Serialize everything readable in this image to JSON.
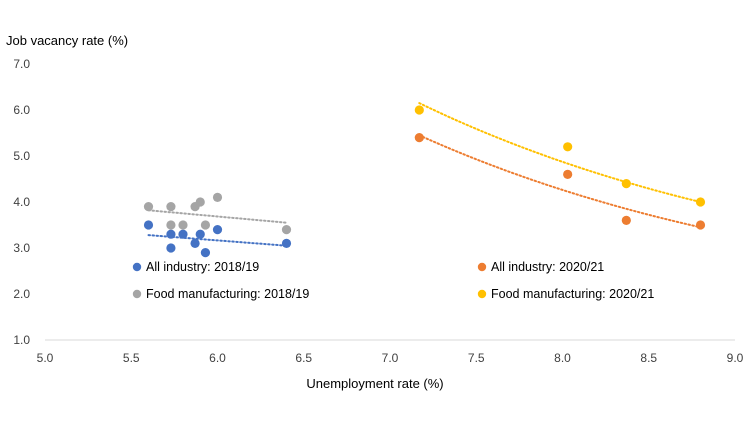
{
  "chart_data": {
    "type": "scatter",
    "title": "",
    "ylabel": "Job vacancy rate (%)",
    "xlabel": "Unemployment rate (%)",
    "xlim": [
      5.0,
      9.0
    ],
    "ylim": [
      1.0,
      7.0
    ],
    "x_ticks": [
      "5.0",
      "5.5",
      "6.0",
      "6.5",
      "7.0",
      "7.5",
      "8.0",
      "8.5",
      "9.0"
    ],
    "y_ticks": [
      "1.0",
      "2.0",
      "3.0",
      "4.0",
      "5.0",
      "6.0",
      "7.0"
    ],
    "grid": false,
    "legend_position": "inside-lower",
    "series": [
      {
        "name": "All industry: 2018/19",
        "color": "#4472C4",
        "points": [
          [
            5.6,
            3.5
          ],
          [
            5.73,
            3.0
          ],
          [
            5.73,
            3.3
          ],
          [
            5.8,
            3.3
          ],
          [
            5.87,
            3.1
          ],
          [
            5.9,
            3.3
          ],
          [
            5.93,
            2.9
          ],
          [
            6.0,
            3.4
          ],
          [
            6.4,
            3.1
          ]
        ],
        "trendline": {
          "type": "linear",
          "from": [
            5.6,
            3.28
          ],
          "to": [
            6.4,
            3.05
          ]
        }
      },
      {
        "name": "All industry: 2020/21",
        "color": "#ED7D31",
        "points": [
          [
            7.17,
            5.4
          ],
          [
            8.03,
            4.6
          ],
          [
            8.37,
            3.6
          ],
          [
            8.8,
            3.5
          ]
        ],
        "trendline": {
          "type": "curve",
          "from": [
            7.17,
            5.45
          ],
          "to": [
            8.8,
            3.45
          ]
        }
      },
      {
        "name": "Food manufacturing: 2018/19",
        "color": "#A5A5A5",
        "points": [
          [
            5.6,
            3.9
          ],
          [
            5.73,
            3.9
          ],
          [
            5.73,
            3.5
          ],
          [
            5.8,
            3.5
          ],
          [
            5.87,
            3.9
          ],
          [
            5.9,
            4.0
          ],
          [
            5.93,
            3.5
          ],
          [
            6.0,
            4.1
          ],
          [
            6.4,
            3.4
          ]
        ],
        "trendline": {
          "type": "linear",
          "from": [
            5.6,
            3.82
          ],
          "to": [
            6.4,
            3.55
          ]
        }
      },
      {
        "name": "Food manufacturing: 2020/21",
        "color": "#FFC000",
        "points": [
          [
            7.17,
            6.0
          ],
          [
            8.03,
            5.2
          ],
          [
            8.37,
            4.4
          ],
          [
            8.8,
            4.0
          ]
        ],
        "trendline": {
          "type": "curve",
          "from": [
            7.17,
            6.15
          ],
          "to": [
            8.8,
            4.0
          ]
        }
      }
    ],
    "legend_layout": [
      {
        "series": 0
      },
      {
        "series": 1
      },
      {
        "series": 2
      },
      {
        "series": 3
      }
    ]
  }
}
